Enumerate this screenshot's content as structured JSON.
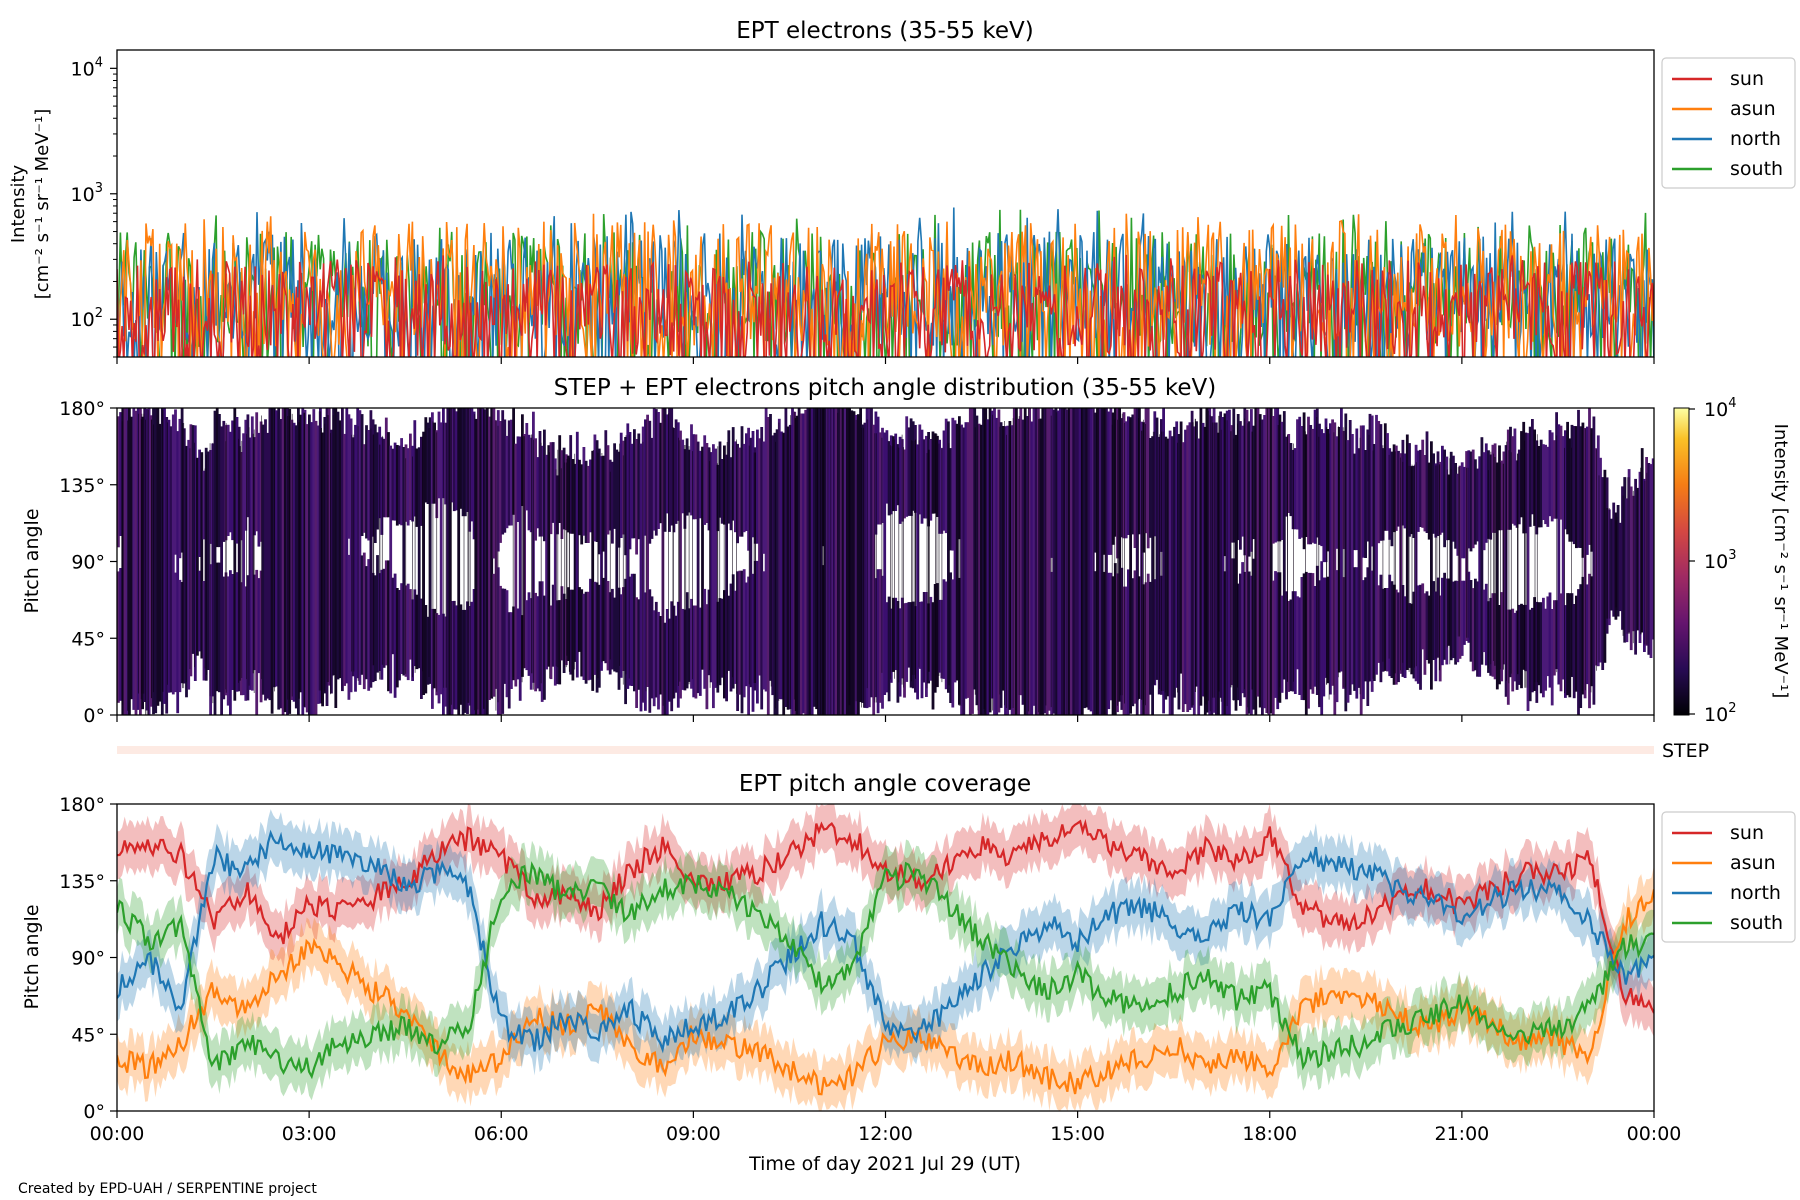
{
  "colors": {
    "sun": "#d62728",
    "asun": "#ff7f0e",
    "north": "#1f77b4",
    "south": "#2ca02c"
  },
  "x_ticks": [
    "00:00",
    "03:00",
    "06:00",
    "09:00",
    "12:00",
    "15:00",
    "18:00",
    "21:00",
    "00:00"
  ],
  "xlabel": "Time of day 2021 Jul 29 (UT)",
  "credit": "Created by EPD-UAH / SERPENTINE project",
  "chart_data": [
    {
      "type": "line",
      "title": "EPT electrons (35-55 keV)",
      "ylabel_lines": [
        "Intensity",
        "[cm⁻² s⁻¹ sr⁻¹ MeV⁻¹]"
      ],
      "y_scale": "log",
      "ylim": [
        50,
        14000
      ],
      "y_ticks": [
        {
          "base": "10",
          "exp": "2",
          "value": 100
        },
        {
          "base": "10",
          "exp": "3",
          "value": 1000
        },
        {
          "base": "10",
          "exp": "4",
          "value": 10000
        }
      ],
      "xlim_hours": [
        0,
        24
      ],
      "legend": {
        "placement": "outside-right",
        "entries": [
          "sun",
          "asun",
          "north",
          "south"
        ]
      },
      "series": [
        {
          "name": "sun",
          "color": "#d62728",
          "typical_range": [
            50,
            300
          ],
          "peak": 330
        },
        {
          "name": "asun",
          "color": "#ff7f0e",
          "typical_range": [
            60,
            600
          ],
          "peak": 700
        },
        {
          "name": "north",
          "color": "#1f77b4",
          "typical_range": [
            60,
            500
          ],
          "peak": 800
        },
        {
          "name": "south",
          "color": "#2ca02c",
          "typical_range": [
            60,
            500
          ],
          "peak": 750
        }
      ]
    },
    {
      "type": "heatmap",
      "title": "STEP + EPT electrons pitch angle distribution (35-55 keV)",
      "ylabel": "Pitch angle",
      "ylim": [
        0,
        180
      ],
      "y_ticks": [
        "0°",
        "45°",
        "90°",
        "135°",
        "180°"
      ],
      "xlim_hours": [
        0,
        24
      ],
      "colorbar": {
        "scale": "log",
        "range": [
          100,
          10000
        ],
        "ticks": [
          {
            "base": "10",
            "exp": "2"
          },
          {
            "base": "10",
            "exp": "3"
          },
          {
            "base": "10",
            "exp": "4"
          }
        ],
        "label": "Intensity [cm⁻² s⁻¹ sr⁻¹ MeV⁻¹]",
        "colormap": "inferno",
        "observed_color": "#2a0a4e"
      },
      "step_label": "STEP"
    },
    {
      "type": "line",
      "title": "EPT pitch angle coverage",
      "ylabel": "Pitch angle",
      "ylim": [
        0,
        180
      ],
      "y_ticks": [
        "0°",
        "45°",
        "90°",
        "135°",
        "180°"
      ],
      "xlim_hours": [
        0,
        24
      ],
      "legend": {
        "placement": "outside-right",
        "entries": [
          "sun",
          "asun",
          "north",
          "south"
        ]
      },
      "series": [
        {
          "name": "sun",
          "color": "#d62728",
          "x": [
            0,
            0.5,
            1,
            1.5,
            2,
            2.5,
            3,
            3.5,
            4,
            4.5,
            5,
            5.5,
            6,
            6.5,
            7,
            7.5,
            8,
            8.5,
            9,
            9.5,
            10,
            10.5,
            11,
            11.5,
            12,
            12.5,
            13,
            13.5,
            14,
            14.5,
            15,
            15.5,
            16,
            16.5,
            17,
            17.5,
            18,
            18.5,
            19,
            19.5,
            20,
            20.5,
            21,
            21.5,
            22,
            22.5,
            23,
            23.5,
            24
          ],
          "y": [
            150,
            158,
            150,
            110,
            130,
            98,
            120,
            118,
            125,
            135,
            150,
            160,
            150,
            125,
            128,
            118,
            140,
            155,
            132,
            135,
            140,
            150,
            165,
            160,
            140,
            135,
            145,
            155,
            150,
            160,
            165,
            155,
            150,
            140,
            155,
            145,
            160,
            120,
            110,
            115,
            125,
            130,
            120,
            130,
            140,
            138,
            150,
            70,
            55
          ]
        },
        {
          "name": "asun",
          "color": "#ff7f0e",
          "x": [
            0,
            0.5,
            1,
            1.5,
            2,
            2.5,
            3,
            3.5,
            4,
            4.5,
            5,
            5.5,
            6,
            6.5,
            7,
            7.5,
            8,
            8.5,
            9,
            9.5,
            10,
            10.5,
            11,
            11.5,
            12,
            12.5,
            13,
            13.5,
            14,
            14.5,
            15,
            15.5,
            16,
            16.5,
            17,
            17.5,
            18,
            18.5,
            19,
            19.5,
            20,
            20.5,
            21,
            21.5,
            22,
            22.5,
            23,
            23.5,
            24
          ],
          "y": [
            30,
            25,
            40,
            70,
            60,
            80,
            95,
            85,
            70,
            60,
            35,
            20,
            30,
            55,
            50,
            60,
            40,
            25,
            45,
            40,
            35,
            25,
            15,
            20,
            40,
            45,
            35,
            25,
            30,
            20,
            15,
            25,
            30,
            40,
            25,
            35,
            20,
            60,
            70,
            65,
            55,
            50,
            60,
            50,
            40,
            42,
            30,
            110,
            125
          ]
        },
        {
          "name": "north",
          "color": "#1f77b4",
          "x": [
            0,
            0.5,
            1,
            1.5,
            2,
            2.5,
            3,
            3.5,
            4,
            4.5,
            5,
            5.5,
            6,
            6.5,
            7,
            7.5,
            8,
            8.5,
            9,
            9.5,
            10,
            10.5,
            11,
            11.5,
            12,
            12.5,
            13,
            13.5,
            14,
            14.5,
            15,
            15.5,
            16,
            16.5,
            17,
            17.5,
            18,
            18.5,
            19,
            19.5,
            20,
            20.5,
            21,
            21.5,
            22,
            22.5,
            23,
            23.5,
            24
          ],
          "y": [
            70,
            90,
            60,
            150,
            140,
            160,
            155,
            150,
            145,
            130,
            140,
            130,
            50,
            40,
            55,
            45,
            60,
            40,
            50,
            55,
            70,
            90,
            110,
            100,
            50,
            45,
            60,
            80,
            95,
            110,
            100,
            115,
            120,
            110,
            100,
            120,
            110,
            150,
            145,
            140,
            130,
            125,
            110,
            125,
            130,
            128,
            110,
            80,
            85
          ]
        },
        {
          "name": "south",
          "color": "#2ca02c",
          "x": [
            0,
            0.5,
            1,
            1.5,
            2,
            2.5,
            3,
            3.5,
            4,
            4.5,
            5,
            5.5,
            6,
            6.5,
            7,
            7.5,
            8,
            8.5,
            9,
            9.5,
            10,
            10.5,
            11,
            11.5,
            12,
            12.5,
            13,
            13.5,
            14,
            14.5,
            15,
            15.5,
            16,
            16.5,
            17,
            17.5,
            18,
            18.5,
            19,
            19.5,
            20,
            20.5,
            21,
            21.5,
            22,
            22.5,
            23,
            23.5,
            24
          ],
          "y": [
            120,
            100,
            110,
            25,
            40,
            30,
            25,
            40,
            45,
            50,
            40,
            50,
            130,
            140,
            125,
            130,
            115,
            130,
            135,
            128,
            115,
            100,
            75,
            85,
            135,
            140,
            120,
            100,
            85,
            70,
            80,
            65,
            60,
            70,
            80,
            65,
            70,
            30,
            35,
            40,
            50,
            55,
            65,
            50,
            45,
            48,
            60,
            95,
            100
          ]
        }
      ]
    }
  ]
}
